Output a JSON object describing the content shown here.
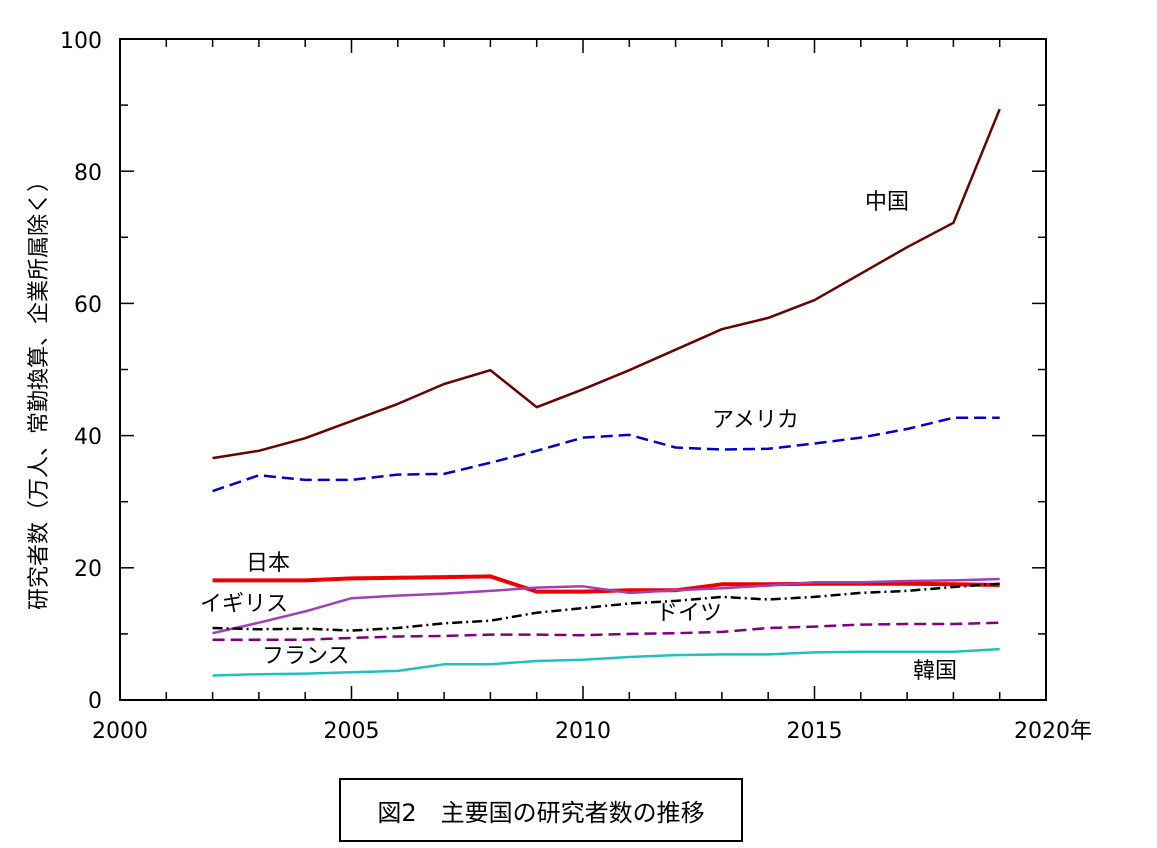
{
  "chart_data": {
    "type": "line",
    "title": "",
    "xlabel": "",
    "ylabel": "研究者数（万人、常勤換算、企業所属除く）",
    "xlim": [
      2000,
      2020
    ],
    "ylim": [
      0,
      100
    ],
    "x_ticks": [
      "2000",
      "2005",
      "2010",
      "2015",
      "2020年"
    ],
    "y_ticks": [
      "0",
      "20",
      "40",
      "60",
      "80",
      "100"
    ],
    "grid": false,
    "legend": "inline labels",
    "caption": "図2　主要国の研究者数の推移",
    "series": [
      {
        "name": "中国",
        "color": "#6b0000",
        "dash": "solid",
        "points": [
          [
            2002,
            36.6
          ],
          [
            2003,
            37.7
          ],
          [
            2004,
            39.6
          ],
          [
            2005,
            42.2
          ],
          [
            2006,
            44.8
          ],
          [
            2007,
            47.8
          ],
          [
            2008,
            49.9
          ],
          [
            2009,
            44.3
          ],
          [
            2010,
            47.0
          ],
          [
            2011,
            49.9
          ],
          [
            2012,
            53.0
          ],
          [
            2013,
            56.1
          ],
          [
            2014,
            57.8
          ],
          [
            2015,
            60.5
          ],
          [
            2016,
            64.5
          ],
          [
            2017,
            68.5
          ],
          [
            2018,
            72.2
          ],
          [
            2019,
            89.4
          ]
        ]
      },
      {
        "name": "アメリカ",
        "color": "#0000cc",
        "dash": "dashed",
        "points": [
          [
            2002,
            31.6
          ],
          [
            2003,
            34.0
          ],
          [
            2004,
            33.3
          ],
          [
            2005,
            33.3
          ],
          [
            2006,
            34.1
          ],
          [
            2007,
            34.2
          ],
          [
            2008,
            35.9
          ],
          [
            2009,
            37.7
          ],
          [
            2010,
            39.7
          ],
          [
            2011,
            40.1
          ],
          [
            2012,
            38.2
          ],
          [
            2013,
            37.9
          ],
          [
            2014,
            38.0
          ],
          [
            2015,
            38.8
          ],
          [
            2016,
            39.7
          ],
          [
            2017,
            41.0
          ],
          [
            2018,
            42.7
          ],
          [
            2019,
            42.7
          ]
        ]
      },
      {
        "name": "日本",
        "color": "#ee0000",
        "dash": "solid-thick",
        "points": [
          [
            2002,
            18.1
          ],
          [
            2003,
            18.1
          ],
          [
            2004,
            18.1
          ],
          [
            2005,
            18.4
          ],
          [
            2006,
            18.5
          ],
          [
            2007,
            18.6
          ],
          [
            2008,
            18.7
          ],
          [
            2009,
            16.4
          ],
          [
            2010,
            16.4
          ],
          [
            2011,
            16.6
          ],
          [
            2012,
            16.6
          ],
          [
            2013,
            17.5
          ],
          [
            2014,
            17.5
          ],
          [
            2015,
            17.6
          ],
          [
            2016,
            17.6
          ],
          [
            2017,
            17.6
          ],
          [
            2018,
            17.5
          ],
          [
            2019,
            17.4
          ]
        ]
      },
      {
        "name": "イギリス",
        "color": "#a040b8",
        "dash": "solid",
        "points": [
          [
            2002,
            10.1
          ],
          [
            2003,
            11.7
          ],
          [
            2004,
            13.4
          ],
          [
            2005,
            15.4
          ],
          [
            2006,
            15.8
          ],
          [
            2007,
            16.1
          ],
          [
            2008,
            16.5
          ],
          [
            2009,
            17.0
          ],
          [
            2010,
            17.2
          ],
          [
            2011,
            16.2
          ],
          [
            2012,
            16.6
          ],
          [
            2013,
            16.9
          ],
          [
            2014,
            17.3
          ],
          [
            2015,
            17.8
          ],
          [
            2016,
            17.8
          ],
          [
            2017,
            18.0
          ],
          [
            2018,
            18.1
          ],
          [
            2019,
            18.3
          ]
        ]
      },
      {
        "name": "ドイツ",
        "color": "#000000",
        "dash": "dashdot",
        "points": [
          [
            2002,
            10.9
          ],
          [
            2003,
            10.7
          ],
          [
            2004,
            10.8
          ],
          [
            2005,
            10.5
          ],
          [
            2006,
            10.9
          ],
          [
            2007,
            11.6
          ],
          [
            2008,
            12.0
          ],
          [
            2009,
            13.2
          ],
          [
            2010,
            13.9
          ],
          [
            2011,
            14.6
          ],
          [
            2012,
            15.0
          ],
          [
            2013,
            15.6
          ],
          [
            2014,
            15.2
          ],
          [
            2015,
            15.6
          ],
          [
            2016,
            16.2
          ],
          [
            2017,
            16.5
          ],
          [
            2018,
            17.1
          ],
          [
            2019,
            17.6
          ]
        ]
      },
      {
        "name": "フランス",
        "color": "#800080",
        "dash": "dashed",
        "points": [
          [
            2002,
            9.1
          ],
          [
            2003,
            9.1
          ],
          [
            2004,
            9.1
          ],
          [
            2005,
            9.4
          ],
          [
            2006,
            9.6
          ],
          [
            2007,
            9.7
          ],
          [
            2008,
            9.9
          ],
          [
            2009,
            9.9
          ],
          [
            2010,
            9.8
          ],
          [
            2011,
            10.0
          ],
          [
            2012,
            10.1
          ],
          [
            2013,
            10.3
          ],
          [
            2014,
            10.9
          ],
          [
            2015,
            11.1
          ],
          [
            2016,
            11.4
          ],
          [
            2017,
            11.5
          ],
          [
            2018,
            11.5
          ],
          [
            2019,
            11.7
          ]
        ]
      },
      {
        "name": "韓国",
        "color": "#20c0c0",
        "dash": "solid",
        "points": [
          [
            2002,
            3.7
          ],
          [
            2003,
            3.9
          ],
          [
            2004,
            4.0
          ],
          [
            2005,
            4.2
          ],
          [
            2006,
            4.4
          ],
          [
            2007,
            5.4
          ],
          [
            2008,
            5.4
          ],
          [
            2009,
            5.9
          ],
          [
            2010,
            6.1
          ],
          [
            2011,
            6.5
          ],
          [
            2012,
            6.8
          ],
          [
            2013,
            6.9
          ],
          [
            2014,
            6.9
          ],
          [
            2015,
            7.2
          ],
          [
            2016,
            7.3
          ],
          [
            2017,
            7.3
          ],
          [
            2018,
            7.3
          ],
          [
            2019,
            7.7
          ]
        ]
      }
    ]
  }
}
